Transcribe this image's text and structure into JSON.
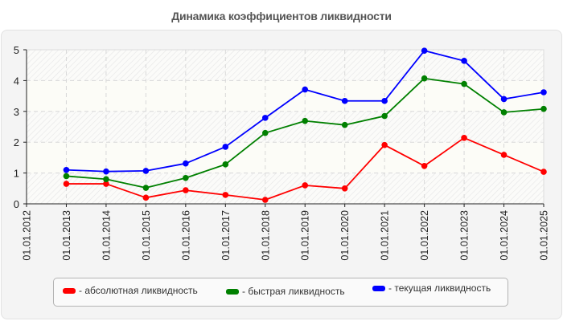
{
  "header": {
    "title": "Динамика коэффициентов ликвидности"
  },
  "chart_data": {
    "type": "line",
    "title": "Динамика коэффициентов ликвидности",
    "xlabel": "",
    "ylabel": "",
    "ylim": [
      0,
      5
    ],
    "yticks": [
      "0",
      "1",
      "2",
      "3",
      "4",
      "5"
    ],
    "grid": true,
    "legend_position": "bottom",
    "categories": [
      "01.01.2012",
      "01.01.2013",
      "01.01.2014",
      "01.01.2015",
      "01.01.2016",
      "01.01.2017",
      "01.01.2018",
      "01.01.2019",
      "01.01.2020",
      "01.01.2021",
      "01.01.2022",
      "01.01.2023",
      "01.01.2024",
      "01.01.2025"
    ],
    "series": [
      {
        "name": "абсолютная ликвидность",
        "color": "#ff0000",
        "values": [
          null,
          0.65,
          0.65,
          0.2,
          0.44,
          0.29,
          0.13,
          0.6,
          0.5,
          1.91,
          1.23,
          2.14,
          1.59,
          1.04
        ]
      },
      {
        "name": "быстрая ликвидность",
        "color": "#008000",
        "values": [
          null,
          0.9,
          0.8,
          0.52,
          0.84,
          1.28,
          2.3,
          2.69,
          2.56,
          2.85,
          4.07,
          3.89,
          2.97,
          3.08
        ]
      },
      {
        "name": "текущая ликвидность",
        "color": "#0000ff",
        "values": [
          null,
          1.1,
          1.05,
          1.07,
          1.31,
          1.85,
          2.79,
          3.71,
          3.34,
          3.34,
          4.97,
          4.64,
          3.4,
          3.62
        ]
      }
    ]
  },
  "legend": {
    "items": [
      {
        "label": "- абсолютная ликвидность",
        "color": "#ff0000"
      },
      {
        "label": "- быстрая ликвидность",
        "color": "#008000"
      },
      {
        "label": "- текущая ликвидность",
        "color": "#0000ff"
      }
    ]
  }
}
